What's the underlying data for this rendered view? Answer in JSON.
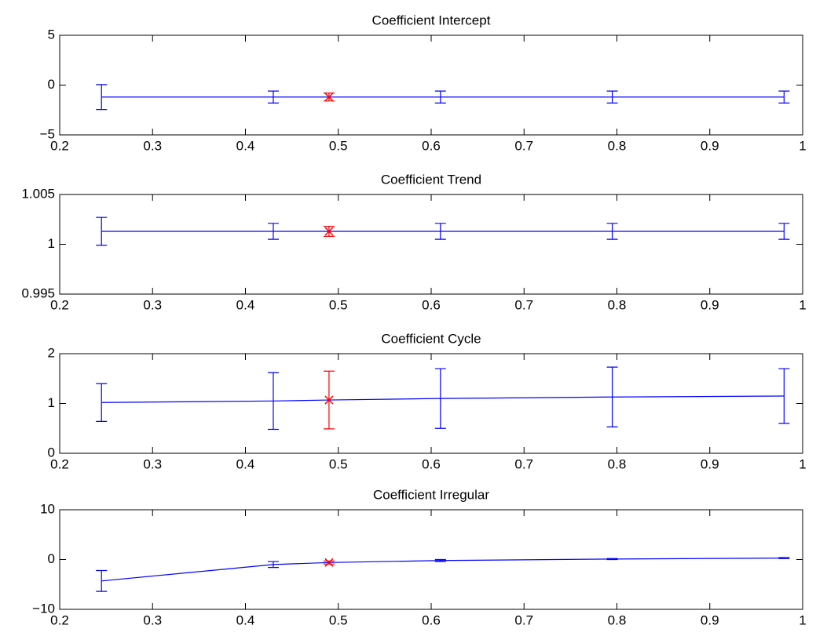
{
  "chart_data": [
    {
      "type": "errorbar",
      "title": "Coefficient Intercept",
      "x": [
        0.245,
        0.43,
        0.49,
        0.61,
        0.795,
        0.98
      ],
      "values": [
        -1.2,
        -1.2,
        -1.2,
        -1.2,
        -1.2,
        -1.2
      ],
      "errors": [
        1.25,
        0.6,
        0.4,
        0.6,
        0.6,
        0.6
      ],
      "color": "#0000ff",
      "colors": [
        "#0000ff",
        "#0000ff",
        "#ff0000",
        "#0000ff",
        "#0000ff",
        "#0000ff"
      ],
      "xlim": [
        0.2,
        1
      ],
      "xticks": [
        0.2,
        0.3,
        0.4,
        0.5,
        0.6,
        0.7,
        0.8,
        0.9,
        1
      ],
      "ylim": [
        -5,
        5
      ],
      "yticks": [
        {
          "value": -5,
          "label": "−5"
        },
        0,
        5
      ]
    },
    {
      "type": "errorbar",
      "title": "Coefficient Trend",
      "x": [
        0.245,
        0.43,
        0.49,
        0.61,
        0.795,
        0.98
      ],
      "values": [
        1.0013,
        1.0013,
        1.0013,
        1.0013,
        1.0013,
        1.0013
      ],
      "errors": [
        0.0014,
        0.0008,
        0.0005,
        0.0008,
        0.0008,
        0.0008
      ],
      "color": "#0000ff",
      "colors": [
        "#0000ff",
        "#0000ff",
        "#ff0000",
        "#0000ff",
        "#0000ff",
        "#0000ff"
      ],
      "xlim": [
        0.2,
        1
      ],
      "xticks": [
        0.2,
        0.3,
        0.4,
        0.5,
        0.6,
        0.7,
        0.8,
        0.9,
        1
      ],
      "ylim": [
        0.995,
        1.005
      ],
      "yticks": [
        0.995,
        1,
        1.005
      ]
    },
    {
      "type": "errorbar",
      "title": "Coefficient Cycle",
      "x": [
        0.245,
        0.43,
        0.49,
        0.61,
        0.795,
        0.98
      ],
      "values": [
        1.02,
        1.05,
        1.07,
        1.1,
        1.13,
        1.15
      ],
      "errors": [
        0.38,
        0.57,
        0.58,
        0.6,
        0.6,
        0.55
      ],
      "color": "#0000ff",
      "colors": [
        "#0000ff",
        "#0000ff",
        "#ff0000",
        "#0000ff",
        "#0000ff",
        "#0000ff"
      ],
      "xlim": [
        0.2,
        1
      ],
      "xticks": [
        0.2,
        0.3,
        0.4,
        0.5,
        0.6,
        0.7,
        0.8,
        0.9,
        1
      ],
      "ylim": [
        0,
        2
      ],
      "yticks": [
        0,
        1,
        2
      ]
    },
    {
      "type": "errorbar",
      "title": "Coefficient Irregular",
      "x": [
        0.245,
        0.43,
        0.49,
        0.61,
        0.795,
        0.98
      ],
      "values": [
        -4.3,
        -1.0,
        -0.6,
        -0.2,
        0.1,
        0.3
      ],
      "errors": [
        2.1,
        0.6,
        0.3,
        0.2,
        0.1,
        0.1
      ],
      "color": "#0000ff",
      "colors": [
        "#0000ff",
        "#0000ff",
        "#ff0000",
        "#0000ff",
        "#0000ff",
        "#0000ff"
      ],
      "xlim": [
        0.2,
        1
      ],
      "xticks": [
        0.2,
        0.3,
        0.4,
        0.5,
        0.6,
        0.7,
        0.8,
        0.9,
        1
      ],
      "ylim": [
        -10,
        10
      ],
      "yticks": [
        {
          "value": -10,
          "label": "−10"
        },
        0,
        {
          "value": 10,
          "label": "10"
        }
      ]
    }
  ]
}
